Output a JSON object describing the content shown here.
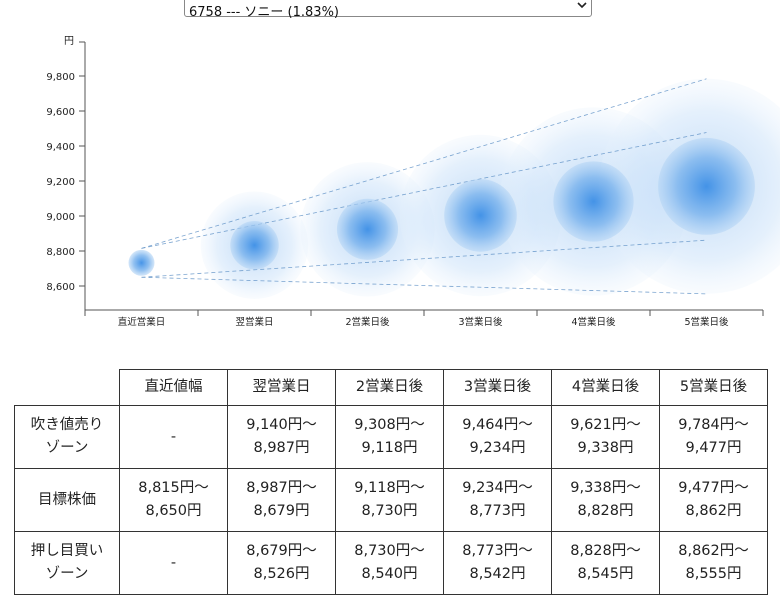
{
  "selector": {
    "selected": "6758 --- ソニー (1.83%)",
    "icon": "chevron-down-icon"
  },
  "chart_data": {
    "type": "bubble-forecast",
    "yunit": "円",
    "categories": [
      "直近営業日",
      "翌営業日",
      "2営業日後",
      "3営業日後",
      "4営業日後",
      "5営業日後"
    ],
    "yticks": [
      8600,
      8800,
      9000,
      9200,
      9400,
      9600,
      9800
    ],
    "ylim": [
      8450,
      9920
    ],
    "series": [
      {
        "name": "吹き値売りゾーン",
        "high": [
          null,
          9140,
          9308,
          9464,
          9621,
          9784
        ],
        "low": [
          null,
          8987,
          9118,
          9234,
          9338,
          9477
        ]
      },
      {
        "name": "目標株価",
        "high": [
          8815,
          8987,
          9118,
          9234,
          9338,
          9477
        ],
        "low": [
          8650,
          8679,
          8730,
          8773,
          8828,
          8862
        ]
      },
      {
        "name": "押し目買いゾーン",
        "high": [
          null,
          8679,
          8730,
          8773,
          8828,
          8862
        ],
        "low": [
          null,
          8526,
          8540,
          8542,
          8545,
          8555
        ]
      }
    ],
    "colors": {
      "bubble_core": "#3b8ee8",
      "bubble_halo": "#bcd9f6",
      "dash": "#5b8fc4",
      "axis": "#555555"
    }
  },
  "table": {
    "headers": [
      "",
      "直近値幅",
      "翌営業日",
      "2営業日後",
      "3営業日後",
      "4営業日後",
      "5営業日後"
    ],
    "rows": [
      {
        "label": [
          "吹き値売り",
          "ゾーン"
        ],
        "cells": [
          [
            "-"
          ],
          [
            "9,140円〜",
            "8,987円"
          ],
          [
            "9,308円〜",
            "9,118円"
          ],
          [
            "9,464円〜",
            "9,234円"
          ],
          [
            "9,621円〜",
            "9,338円"
          ],
          [
            "9,784円〜",
            "9,477円"
          ]
        ]
      },
      {
        "label": [
          "目標株価"
        ],
        "cells": [
          [
            "8,815円〜",
            "8,650円"
          ],
          [
            "8,987円〜",
            "8,679円"
          ],
          [
            "9,118円〜",
            "8,730円"
          ],
          [
            "9,234円〜",
            "8,773円"
          ],
          [
            "9,338円〜",
            "8,828円"
          ],
          [
            "9,477円〜",
            "8,862円"
          ]
        ]
      },
      {
        "label": [
          "押し目買い",
          "ゾーン"
        ],
        "cells": [
          [
            "-"
          ],
          [
            "8,679円〜",
            "8,526円"
          ],
          [
            "8,730円〜",
            "8,540円"
          ],
          [
            "8,773円〜",
            "8,542円"
          ],
          [
            "8,828円〜",
            "8,545円"
          ],
          [
            "8,862円〜",
            "8,555円"
          ]
        ]
      }
    ]
  }
}
